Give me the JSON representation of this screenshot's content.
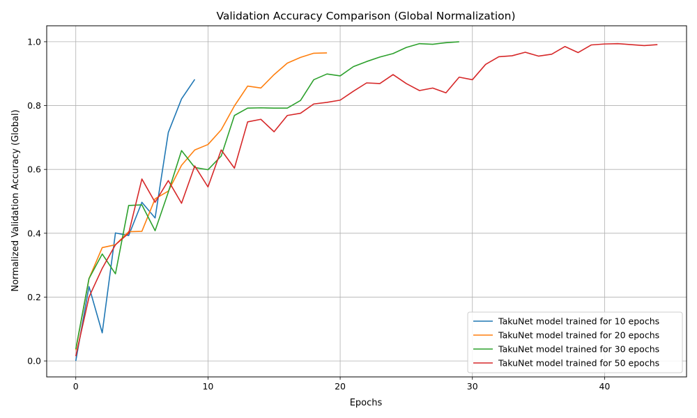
{
  "chart_data": {
    "type": "line",
    "title": "Validation Accuracy Comparison (Global Normalization)",
    "xlabel": "Epochs",
    "ylabel": "Normalized Validation Accuracy (Global)",
    "xlim": [
      -2.2,
      46.2
    ],
    "ylim": [
      -0.05,
      1.05
    ],
    "xticks": [
      0,
      10,
      20,
      30,
      40
    ],
    "yticks": [
      0.0,
      0.2,
      0.4,
      0.6,
      0.8,
      1.0
    ],
    "xtick_labels": [
      "0",
      "10",
      "20",
      "30",
      "40"
    ],
    "ytick_labels": [
      "0.0",
      "0.2",
      "0.4",
      "0.6",
      "0.8",
      "1.0"
    ],
    "grid": true,
    "legend_position": "bottom-right",
    "series": [
      {
        "name": "TakuNet model trained for 10 epochs",
        "color": "#1f77b4",
        "x": [
          0,
          1,
          2,
          3,
          4,
          5,
          6,
          7,
          8,
          9
        ],
        "y": [
          0.0,
          0.233,
          0.088,
          0.401,
          0.393,
          0.497,
          0.448,
          0.716,
          0.821,
          0.882
        ]
      },
      {
        "name": "TakuNet model trained for 20 epochs",
        "color": "#ff7f0e",
        "x": [
          0,
          1,
          2,
          3,
          4,
          5,
          6,
          7,
          8,
          9,
          10,
          11,
          12,
          13,
          14,
          15,
          16,
          17,
          18,
          19
        ],
        "y": [
          0.034,
          0.258,
          0.355,
          0.364,
          0.405,
          0.406,
          0.508,
          0.532,
          0.613,
          0.661,
          0.678,
          0.724,
          0.799,
          0.861,
          0.855,
          0.897,
          0.933,
          0.951,
          0.964,
          0.965
        ]
      },
      {
        "name": "TakuNet model trained for 30 epochs",
        "color": "#2ca02c",
        "x": [
          0,
          1,
          2,
          3,
          4,
          5,
          6,
          7,
          8,
          9,
          10,
          11,
          12,
          13,
          14,
          15,
          16,
          17,
          18,
          19,
          20,
          21,
          22,
          23,
          24,
          25,
          26,
          27,
          28,
          29
        ],
        "y": [
          0.037,
          0.258,
          0.335,
          0.273,
          0.487,
          0.489,
          0.408,
          0.529,
          0.659,
          0.606,
          0.599,
          0.642,
          0.769,
          0.792,
          0.793,
          0.792,
          0.792,
          0.816,
          0.881,
          0.899,
          0.893,
          0.922,
          0.938,
          0.952,
          0.963,
          0.982,
          0.994,
          0.992,
          0.997,
          1.0
        ]
      },
      {
        "name": "TakuNet model trained for 50 epochs",
        "color": "#d62728",
        "x": [
          0,
          1,
          2,
          3,
          4,
          5,
          6,
          7,
          8,
          9,
          10,
          11,
          12,
          13,
          14,
          15,
          16,
          17,
          18,
          19,
          20,
          21,
          22,
          23,
          24,
          25,
          26,
          27,
          28,
          29,
          30,
          31,
          32,
          33,
          34,
          35,
          36,
          37,
          38,
          39,
          40,
          41,
          42,
          43,
          44
        ],
        "y": [
          0.015,
          0.2,
          0.29,
          0.364,
          0.4,
          0.57,
          0.497,
          0.565,
          0.494,
          0.611,
          0.545,
          0.661,
          0.604,
          0.749,
          0.757,
          0.718,
          0.769,
          0.776,
          0.805,
          0.81,
          0.817,
          0.845,
          0.871,
          0.869,
          0.897,
          0.869,
          0.847,
          0.855,
          0.84,
          0.889,
          0.881,
          0.929,
          0.953,
          0.956,
          0.967,
          0.955,
          0.961,
          0.985,
          0.966,
          0.99,
          0.993,
          0.994,
          0.991,
          0.988,
          0.991
        ]
      }
    ]
  }
}
